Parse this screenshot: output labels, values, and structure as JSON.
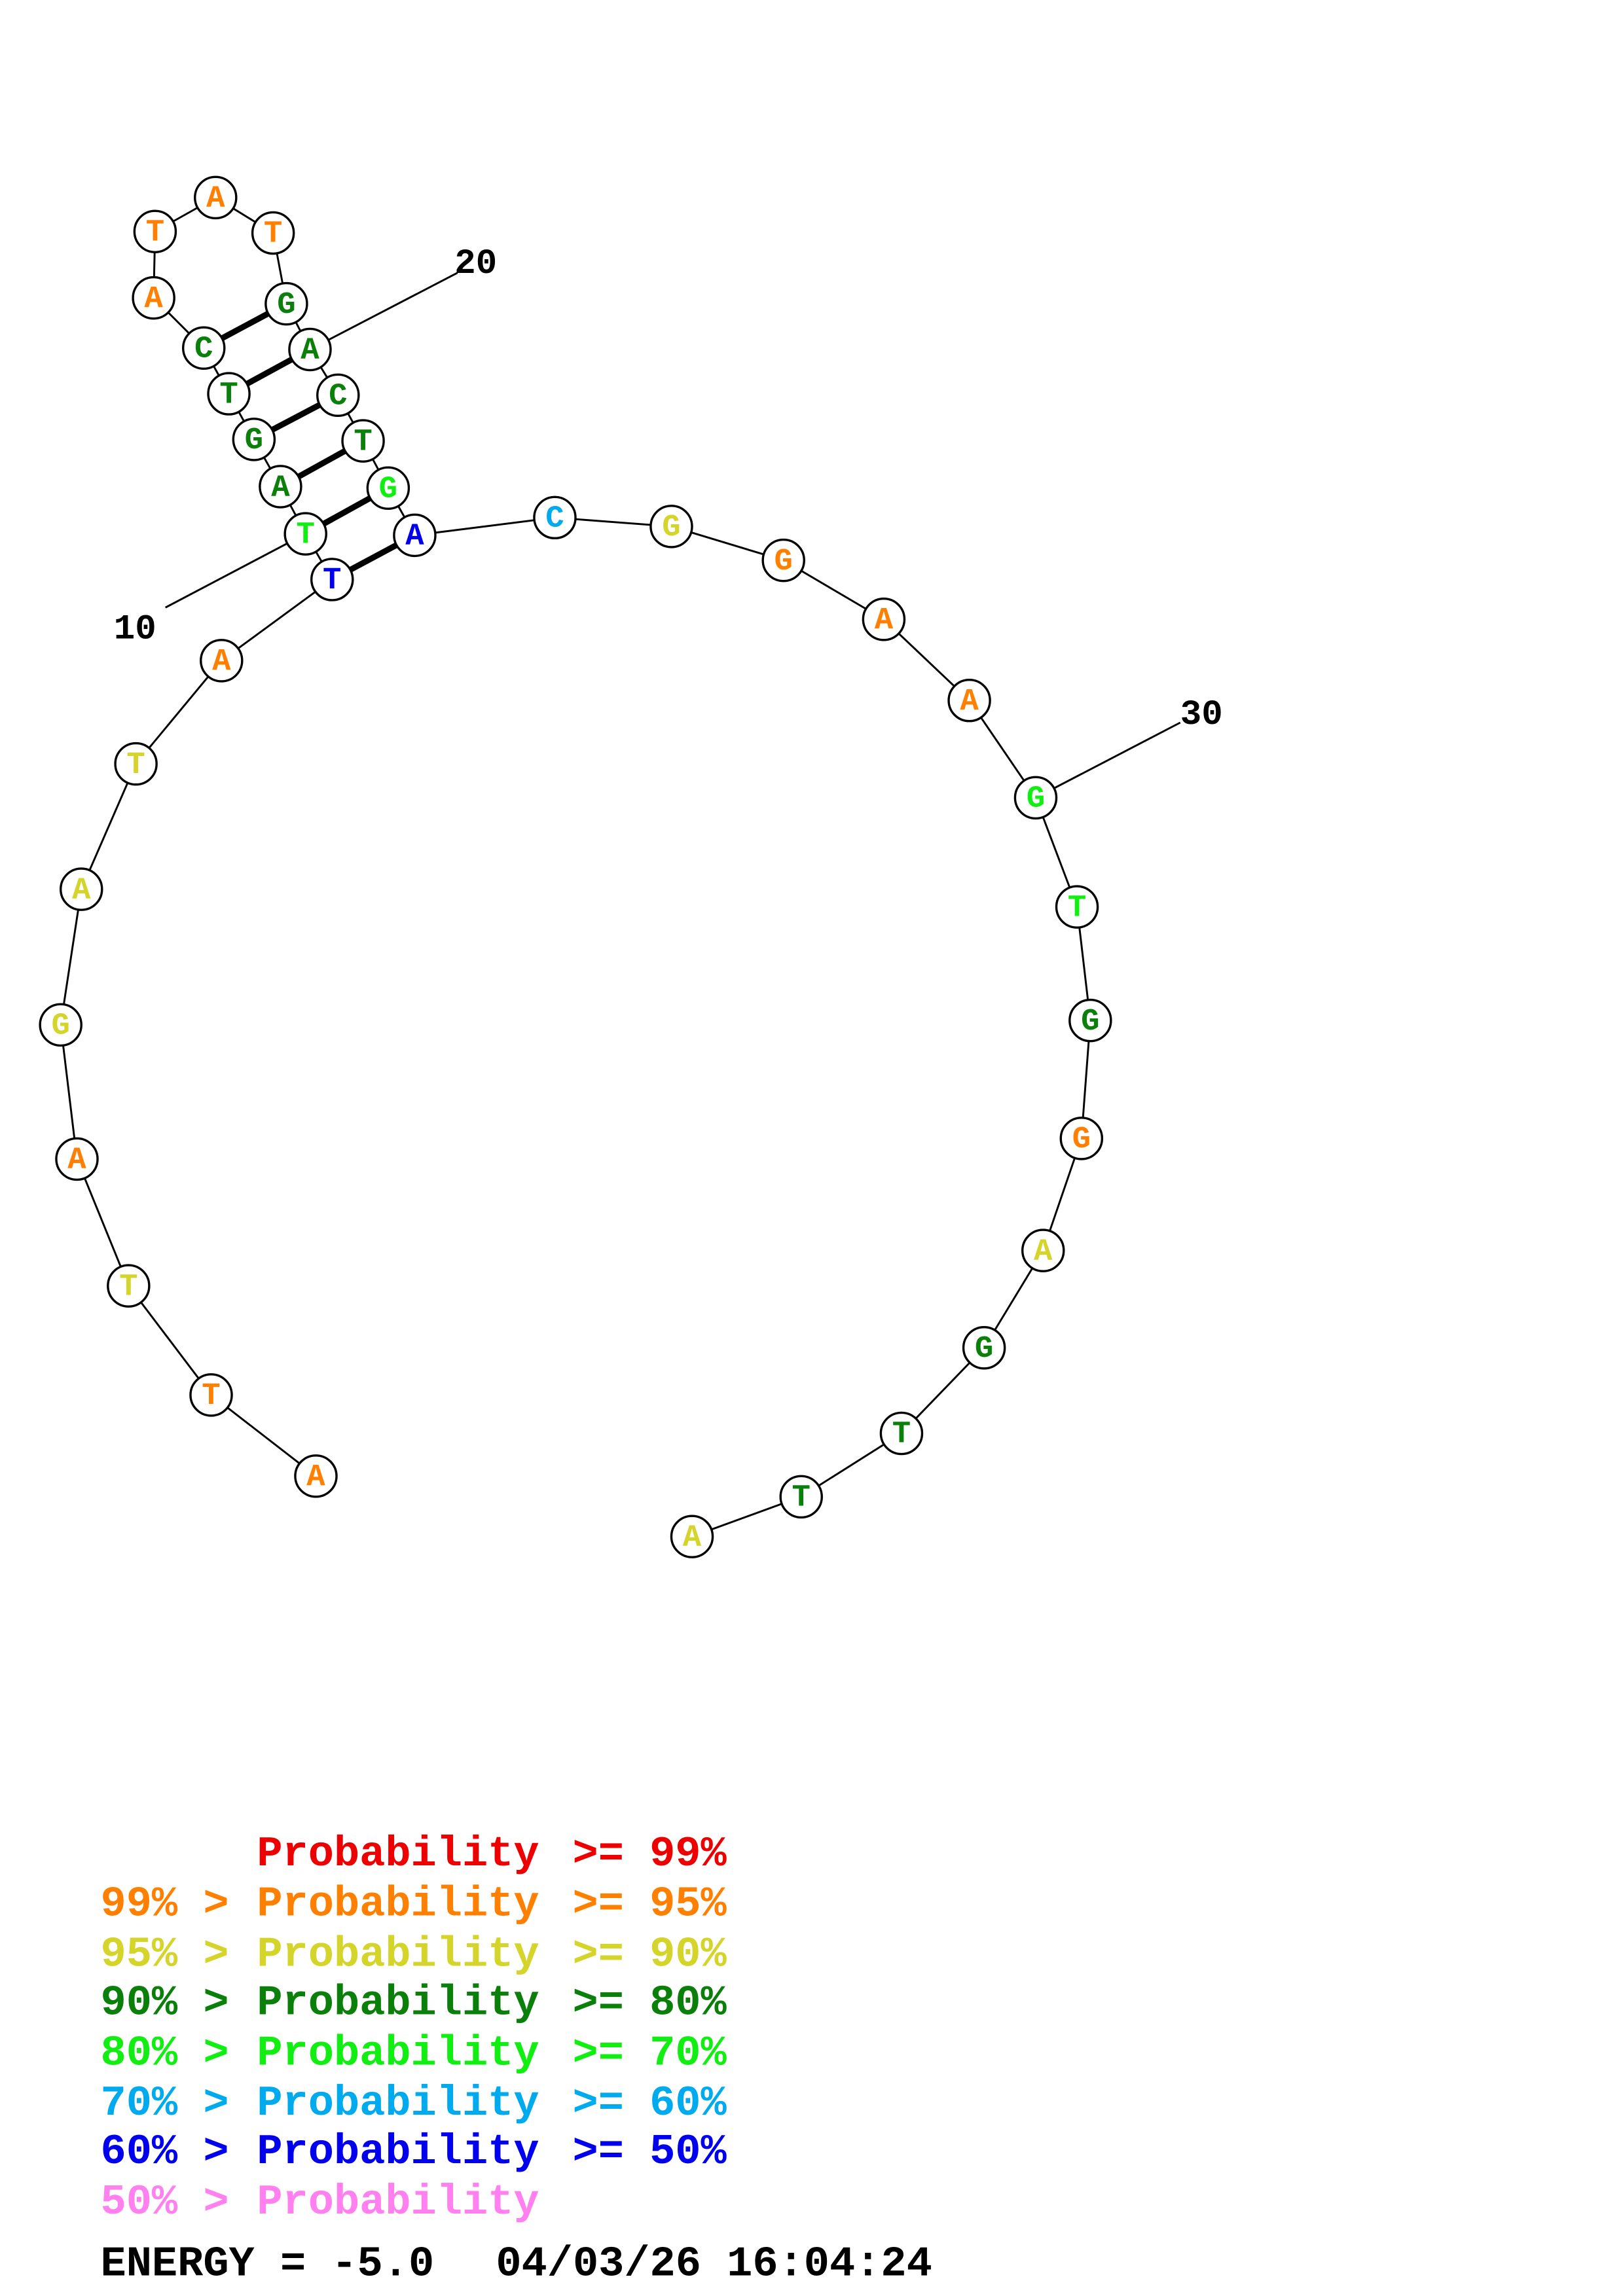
{
  "sequence": [
    {
      "base": "A",
      "color": "#ff8000"
    },
    {
      "base": "T",
      "color": "#ff8000"
    },
    {
      "base": "T",
      "color": "#d4d42a"
    },
    {
      "base": "A",
      "color": "#ff8000"
    },
    {
      "base": "G",
      "color": "#d4d42a"
    },
    {
      "base": "A",
      "color": "#d4d42a"
    },
    {
      "base": "T",
      "color": "#d4d42a"
    },
    {
      "base": "A",
      "color": "#ff8000"
    },
    {
      "base": "T",
      "color": "#0000ee"
    },
    {
      "base": "T",
      "color": "#11ee11"
    },
    {
      "base": "A",
      "color": "#0a7f0a"
    },
    {
      "base": "G",
      "color": "#0a7f0a"
    },
    {
      "base": "T",
      "color": "#0a7f0a"
    },
    {
      "base": "C",
      "color": "#0a7f0a"
    },
    {
      "base": "A",
      "color": "#ff8000"
    },
    {
      "base": "T",
      "color": "#ff8000"
    },
    {
      "base": "A",
      "color": "#ff8000"
    },
    {
      "base": "T",
      "color": "#ff8000"
    },
    {
      "base": "G",
      "color": "#0a7f0a"
    },
    {
      "base": "A",
      "color": "#0a7f0a"
    },
    {
      "base": "C",
      "color": "#0a7f0a"
    },
    {
      "base": "T",
      "color": "#0a7f0a"
    },
    {
      "base": "G",
      "color": "#11ee11"
    },
    {
      "base": "A",
      "color": "#0000ee"
    },
    {
      "base": "C",
      "color": "#00aaee"
    },
    {
      "base": "G",
      "color": "#d4d42a"
    },
    {
      "base": "G",
      "color": "#ff8000"
    },
    {
      "base": "A",
      "color": "#ff8000"
    },
    {
      "base": "A",
      "color": "#ff8000"
    },
    {
      "base": "G",
      "color": "#11ee11"
    },
    {
      "base": "T",
      "color": "#11ee11"
    },
    {
      "base": "G",
      "color": "#0a7f0a"
    },
    {
      "base": "G",
      "color": "#ff8000"
    },
    {
      "base": "A",
      "color": "#d4d42a"
    },
    {
      "base": "G",
      "color": "#0a7f0a"
    },
    {
      "base": "T",
      "color": "#0a7f0a"
    },
    {
      "base": "T",
      "color": "#0a7f0a"
    },
    {
      "base": "A",
      "color": "#d4d42a"
    }
  ],
  "pairs": [
    [
      9,
      24
    ],
    [
      10,
      23
    ],
    [
      11,
      22
    ],
    [
      12,
      21
    ],
    [
      13,
      20
    ],
    [
      14,
      19
    ]
  ],
  "position_labels": [
    "10",
    "20",
    "30"
  ],
  "legend": [
    {
      "prefix": "",
      "label": "Probability",
      "suffix": ">= 99%",
      "color": "#ee0000"
    },
    {
      "prefix": "99% >",
      "label": "Probability",
      "suffix": ">= 95%",
      "color": "#ff8000"
    },
    {
      "prefix": "95% >",
      "label": "Probability",
      "suffix": ">= 90%",
      "color": "#d4d42a"
    },
    {
      "prefix": "90% >",
      "label": "Probability",
      "suffix": ">= 80%",
      "color": "#0a7f0a"
    },
    {
      "prefix": "80% >",
      "label": "Probability",
      "suffix": ">= 70%",
      "color": "#11ee11"
    },
    {
      "prefix": "70% >",
      "label": "Probability",
      "suffix": ">= 60%",
      "color": "#00aaee"
    },
    {
      "prefix": "60% >",
      "label": "Probability",
      "suffix": ">= 50%",
      "color": "#0000ee"
    },
    {
      "prefix": "50% >",
      "label": "Probability",
      "suffix": "",
      "color": "#ff80ee"
    }
  ],
  "footer": {
    "energy": "ENERGY = -5.0",
    "timestamp": "04/03/26 16:04:24"
  }
}
